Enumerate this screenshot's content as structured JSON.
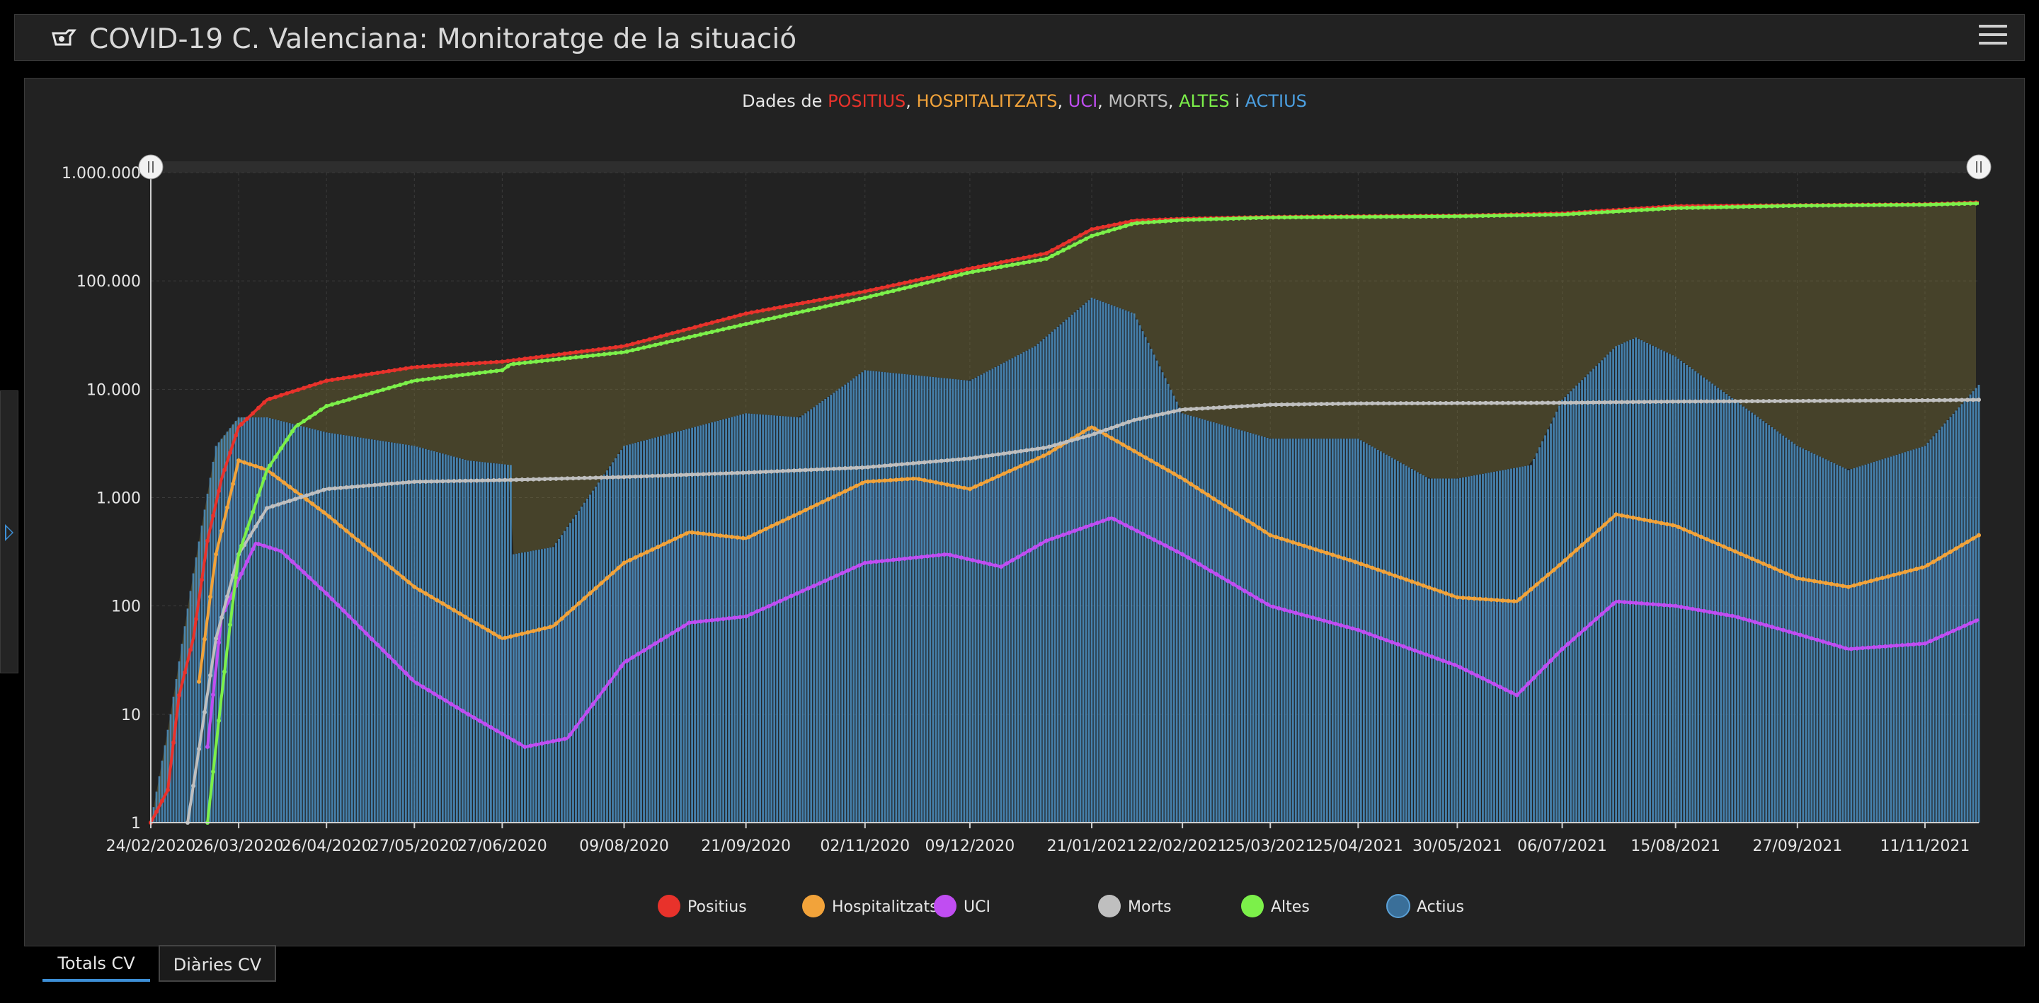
{
  "header": {
    "title": "COVID-19 C. Valenciana: Monitoratge de la situació",
    "logo_icon": "generalitat-logo-icon",
    "menu_icon": "hamburger-menu-icon"
  },
  "side_panel": {
    "toggle_icon": "expand-right-arrow-icon"
  },
  "tabs": [
    {
      "label": "Totals CV",
      "active": true
    },
    {
      "label": "Diàries CV",
      "active": false
    }
  ],
  "chart_data": {
    "type": "line",
    "title": {
      "prefix": "Dades de ",
      "parts": [
        {
          "text": "POSITIUS",
          "color": "#e8322b"
        },
        {
          "text": ", ",
          "color": "#e6e6e6"
        },
        {
          "text": "HOSPITALITZATS",
          "color": "#f2a33a"
        },
        {
          "text": ", ",
          "color": "#e6e6e6"
        },
        {
          "text": "UCI",
          "color": "#c04df2"
        },
        {
          "text": ", ",
          "color": "#e6e6e6"
        },
        {
          "text": "MORTS",
          "color": "#bfbfbf"
        },
        {
          "text": ", ",
          "color": "#e6e6e6"
        },
        {
          "text": "ALTES",
          "color": "#7cf04a"
        },
        {
          "text": " i ",
          "color": "#e6e6e6"
        },
        {
          "text": "ACTIUS",
          "color": "#4b9fe0"
        }
      ]
    },
    "y_scale": "log",
    "ylim": [
      1,
      1000000
    ],
    "y_ticks": [
      "1",
      "10",
      "100",
      "1.000",
      "10.000",
      "100.000",
      "1.000.000"
    ],
    "x_ticks": [
      "24/02/2020",
      "26/03/2020",
      "26/04/2020",
      "27/05/2020",
      "27/06/2020",
      "09/08/2020",
      "21/09/2020",
      "02/11/2020",
      "09/12/2020",
      "21/01/2021",
      "22/02/2021",
      "25/03/2021",
      "25/04/2021",
      "30/05/2021",
      "06/07/2021",
      "15/08/2021",
      "27/09/2021",
      "11/11/2021"
    ],
    "xlim": [
      "24/02/2020",
      "30/11/2021"
    ],
    "grid": true,
    "legend_position": "bottom",
    "series": [
      {
        "name": "Positius",
        "color": "#e8322b",
        "kind": "line",
        "points": [
          [
            "24/02/2020",
            1
          ],
          [
            "01/03/2020",
            2
          ],
          [
            "05/03/2020",
            15
          ],
          [
            "10/03/2020",
            50
          ],
          [
            "15/03/2020",
            400
          ],
          [
            "20/03/2020",
            1500
          ],
          [
            "26/03/2020",
            4500
          ],
          [
            "05/04/2020",
            8000
          ],
          [
            "26/04/2020",
            12000
          ],
          [
            "27/05/2020",
            16000
          ],
          [
            "27/06/2020",
            18000
          ],
          [
            "09/08/2020",
            25000
          ],
          [
            "21/09/2020",
            50000
          ],
          [
            "02/11/2020",
            80000
          ],
          [
            "09/12/2020",
            130000
          ],
          [
            "05/01/2021",
            180000
          ],
          [
            "21/01/2021",
            300000
          ],
          [
            "05/02/2021",
            360000
          ],
          [
            "22/02/2021",
            375000
          ],
          [
            "25/03/2021",
            390000
          ],
          [
            "25/04/2021",
            395000
          ],
          [
            "30/05/2021",
            400000
          ],
          [
            "06/07/2021",
            420000
          ],
          [
            "15/08/2021",
            490000
          ],
          [
            "27/09/2021",
            500000
          ],
          [
            "11/11/2021",
            510000
          ],
          [
            "30/11/2021",
            530000
          ]
        ]
      },
      {
        "name": "Hospitalitzats",
        "color": "#f2a33a",
        "kind": "line",
        "points": [
          [
            "12/03/2020",
            20
          ],
          [
            "18/03/2020",
            300
          ],
          [
            "26/03/2020",
            2200
          ],
          [
            "05/04/2020",
            1800
          ],
          [
            "26/04/2020",
            700
          ],
          [
            "27/05/2020",
            150
          ],
          [
            "27/06/2020",
            50
          ],
          [
            "15/07/2020",
            65
          ],
          [
            "09/08/2020",
            250
          ],
          [
            "01/09/2020",
            480
          ],
          [
            "21/09/2020",
            420
          ],
          [
            "02/11/2020",
            1400
          ],
          [
            "20/11/2020",
            1500
          ],
          [
            "09/12/2020",
            1200
          ],
          [
            "05/01/2021",
            2500
          ],
          [
            "21/01/2021",
            4500
          ],
          [
            "22/02/2021",
            1500
          ],
          [
            "25/03/2021",
            450
          ],
          [
            "25/04/2021",
            250
          ],
          [
            "30/05/2021",
            120
          ],
          [
            "20/06/2021",
            110
          ],
          [
            "06/07/2021",
            250
          ],
          [
            "25/07/2021",
            700
          ],
          [
            "15/08/2021",
            550
          ],
          [
            "27/09/2021",
            180
          ],
          [
            "15/10/2021",
            150
          ],
          [
            "11/11/2021",
            230
          ],
          [
            "30/11/2021",
            450
          ]
        ]
      },
      {
        "name": "UCI",
        "color": "#c04df2",
        "kind": "line",
        "points": [
          [
            "15/03/2020",
            5
          ],
          [
            "20/03/2020",
            80
          ],
          [
            "01/04/2020",
            380
          ],
          [
            "10/04/2020",
            320
          ],
          [
            "26/04/2020",
            130
          ],
          [
            "27/05/2020",
            20
          ],
          [
            "15/06/2020",
            10
          ],
          [
            "05/07/2020",
            5
          ],
          [
            "20/07/2020",
            6
          ],
          [
            "09/08/2020",
            30
          ],
          [
            "01/09/2020",
            70
          ],
          [
            "21/09/2020",
            80
          ],
          [
            "02/11/2020",
            250
          ],
          [
            "01/12/2020",
            300
          ],
          [
            "20/12/2020",
            230
          ],
          [
            "05/01/2021",
            400
          ],
          [
            "28/01/2021",
            650
          ],
          [
            "22/02/2021",
            300
          ],
          [
            "25/03/2021",
            100
          ],
          [
            "25/04/2021",
            60
          ],
          [
            "30/05/2021",
            28
          ],
          [
            "20/06/2021",
            15
          ],
          [
            "06/07/2021",
            40
          ],
          [
            "25/07/2021",
            110
          ],
          [
            "15/08/2021",
            100
          ],
          [
            "05/09/2021",
            80
          ],
          [
            "27/09/2021",
            55
          ],
          [
            "15/10/2021",
            40
          ],
          [
            "11/11/2021",
            45
          ],
          [
            "30/11/2021",
            75
          ]
        ]
      },
      {
        "name": "Morts",
        "color": "#bfbfbf",
        "kind": "line",
        "points": [
          [
            "08/03/2020",
            1
          ],
          [
            "18/03/2020",
            50
          ],
          [
            "26/03/2020",
            300
          ],
          [
            "05/04/2020",
            800
          ],
          [
            "26/04/2020",
            1200
          ],
          [
            "27/05/2020",
            1400
          ],
          [
            "27/06/2020",
            1450
          ],
          [
            "09/08/2020",
            1550
          ],
          [
            "21/09/2020",
            1700
          ],
          [
            "02/11/2020",
            1900
          ],
          [
            "09/12/2020",
            2300
          ],
          [
            "05/01/2021",
            2900
          ],
          [
            "21/01/2021",
            3800
          ],
          [
            "05/02/2021",
            5200
          ],
          [
            "22/02/2021",
            6500
          ],
          [
            "25/03/2021",
            7200
          ],
          [
            "25/04/2021",
            7400
          ],
          [
            "30/05/2021",
            7450
          ],
          [
            "06/07/2021",
            7500
          ],
          [
            "15/08/2021",
            7700
          ],
          [
            "27/09/2021",
            7800
          ],
          [
            "11/11/2021",
            7900
          ],
          [
            "30/11/2021",
            8000
          ]
        ]
      },
      {
        "name": "Altes",
        "color": "#7cf04a",
        "kind": "line",
        "points": [
          [
            "15/03/2020",
            1
          ],
          [
            "20/03/2020",
            15
          ],
          [
            "26/03/2020",
            300
          ],
          [
            "05/04/2020",
            1800
          ],
          [
            "15/04/2020",
            4500
          ],
          [
            "26/04/2020",
            7000
          ],
          [
            "27/05/2020",
            12000
          ],
          [
            "27/06/2020",
            15000
          ],
          [
            "30/06/2020",
            17000
          ],
          [
            "09/08/2020",
            22000
          ],
          [
            "21/09/2020",
            40000
          ],
          [
            "02/11/2020",
            70000
          ],
          [
            "09/12/2020",
            120000
          ],
          [
            "05/01/2021",
            160000
          ],
          [
            "21/01/2021",
            260000
          ],
          [
            "05/02/2021",
            340000
          ],
          [
            "22/02/2021",
            365000
          ],
          [
            "25/03/2021",
            385000
          ],
          [
            "25/04/2021",
            390000
          ],
          [
            "30/05/2021",
            395000
          ],
          [
            "06/07/2021",
            410000
          ],
          [
            "15/08/2021",
            470000
          ],
          [
            "27/09/2021",
            495000
          ],
          [
            "11/11/2021",
            505000
          ],
          [
            "30/11/2021",
            520000
          ]
        ]
      },
      {
        "name": "Actius",
        "color": "#4b9fe0",
        "kind": "bar",
        "points": [
          [
            "24/02/2020",
            1
          ],
          [
            "02/03/2020",
            10
          ],
          [
            "10/03/2020",
            200
          ],
          [
            "18/03/2020",
            3000
          ],
          [
            "26/03/2020",
            5500
          ],
          [
            "05/04/2020",
            5500
          ],
          [
            "26/04/2020",
            4000
          ],
          [
            "27/05/2020",
            3000
          ],
          [
            "15/06/2020",
            2200
          ],
          [
            "30/06/2020",
            2000
          ],
          [
            "01/07/2020",
            300
          ],
          [
            "15/07/2020",
            350
          ],
          [
            "01/08/2020",
            1500
          ],
          [
            "09/08/2020",
            3000
          ],
          [
            "21/09/2020",
            6000
          ],
          [
            "10/10/2020",
            5500
          ],
          [
            "02/11/2020",
            15000
          ],
          [
            "09/12/2020",
            12000
          ],
          [
            "01/01/2021",
            25000
          ],
          [
            "21/01/2021",
            70000
          ],
          [
            "05/02/2021",
            50000
          ],
          [
            "22/02/2021",
            6000
          ],
          [
            "25/03/2021",
            3500
          ],
          [
            "25/04/2021",
            3500
          ],
          [
            "20/05/2021",
            1500
          ],
          [
            "30/05/2021",
            1500
          ],
          [
            "25/06/2021",
            2000
          ],
          [
            "06/07/2021",
            8000
          ],
          [
            "25/07/2021",
            25000
          ],
          [
            "01/08/2021",
            30000
          ],
          [
            "15/08/2021",
            20000
          ],
          [
            "27/09/2021",
            3000
          ],
          [
            "15/10/2021",
            1800
          ],
          [
            "11/11/2021",
            3000
          ],
          [
            "30/11/2021",
            11000
          ]
        ]
      }
    ]
  }
}
